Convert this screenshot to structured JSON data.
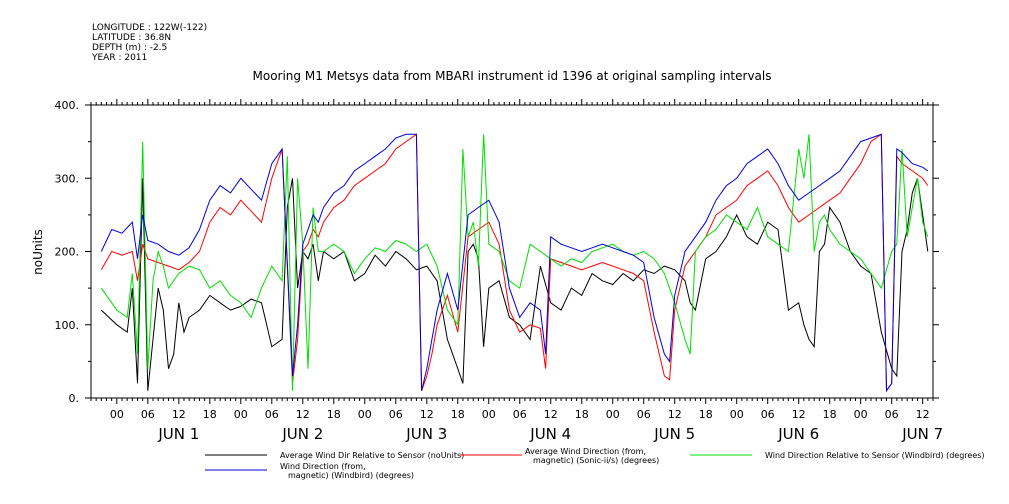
{
  "metadata": {
    "longitude": "LONGITUDE : 122W(-122)",
    "latitude": "LATITUDE : 36.8N",
    "depth": "DEPTH (m) : -2.5",
    "year": "YEAR : 2011"
  },
  "chart_data": {
    "type": "line",
    "title": "Mooring M1 Metsys data from MBARI instrument id 1396 at original sampling intervals",
    "ylabel": "noUnits",
    "xlabel": "",
    "ylim": [
      0,
      400
    ],
    "yticks": [
      0,
      100,
      200,
      300,
      400
    ],
    "ytick_labels": [
      "0.",
      "100.",
      "200.",
      "300.",
      "400."
    ],
    "xlim_hours": [
      -5,
      158
    ],
    "xtick_hours": [
      0,
      6,
      12,
      18,
      24,
      30,
      36,
      42,
      48,
      54,
      60,
      66,
      72,
      78,
      84,
      90,
      96,
      102,
      108,
      114,
      120,
      126,
      132,
      138,
      144,
      150,
      156
    ],
    "xtick_labels": [
      "00",
      "06",
      "12",
      "18",
      "00",
      "06",
      "12",
      "18",
      "00",
      "06",
      "12",
      "18",
      "00",
      "06",
      "12",
      "18",
      "00",
      "06",
      "12",
      "18",
      "00",
      "06",
      "12",
      "18",
      "00",
      "06",
      "12"
    ],
    "day_labels": [
      {
        "hour": 12,
        "text": "JUN  1"
      },
      {
        "hour": 36,
        "text": "JUN  2"
      },
      {
        "hour": 60,
        "text": "JUN  3"
      },
      {
        "hour": 84,
        "text": "JUN  4"
      },
      {
        "hour": 108,
        "text": "JUN  5"
      },
      {
        "hour": 132,
        "text": "JUN  6"
      },
      {
        "hour": 156,
        "text": "JUN  7"
      }
    ],
    "grid": false,
    "legend_position": "bottom",
    "series": [
      {
        "name": "Average Wind Dir Relative to Sensor (noUnits)",
        "color": "#000000",
        "x": [
          -3,
          0,
          2,
          3,
          4,
          5,
          6,
          7,
          8,
          9,
          10,
          11,
          12,
          13,
          14,
          16,
          18,
          20,
          22,
          24,
          26,
          28,
          30,
          32,
          33,
          34,
          35,
          36,
          37,
          38,
          39,
          40,
          42,
          44,
          46,
          48,
          50,
          52,
          54,
          56,
          58,
          60,
          62,
          64,
          66,
          67,
          68,
          69,
          70,
          71,
          72,
          74,
          76,
          78,
          80,
          82,
          84,
          86,
          88,
          90,
          92,
          94,
          96,
          98,
          100,
          102,
          104,
          106,
          108,
          110,
          111,
          112,
          114,
          116,
          118,
          120,
          122,
          124,
          126,
          128,
          130,
          132,
          133,
          134,
          135,
          136,
          137,
          138,
          140,
          142,
          144,
          146,
          148,
          150,
          151,
          152,
          153,
          154,
          155,
          156,
          157
        ],
        "y": [
          120,
          100,
          90,
          150,
          20,
          300,
          10,
          80,
          150,
          120,
          40,
          60,
          130,
          90,
          110,
          120,
          140,
          130,
          120,
          125,
          135,
          130,
          70,
          80,
          260,
          300,
          150,
          200,
          190,
          210,
          160,
          200,
          190,
          200,
          160,
          170,
          195,
          180,
          200,
          190,
          175,
          180,
          160,
          80,
          40,
          20,
          200,
          210,
          190,
          70,
          150,
          160,
          110,
          100,
          80,
          180,
          130,
          120,
          150,
          140,
          170,
          160,
          155,
          170,
          160,
          175,
          170,
          180,
          175,
          160,
          130,
          120,
          190,
          200,
          220,
          250,
          220,
          210,
          240,
          230,
          120,
          130,
          100,
          80,
          70,
          200,
          210,
          260,
          240,
          200,
          180,
          170,
          90,
          40,
          30,
          200,
          230,
          280,
          300,
          250,
          200
        ]
      },
      {
        "name": "Average Wind Direction (from, magnetic) (Sonic-ii/s) (degrees)",
        "color": "#ff0000",
        "x": [
          -3,
          -1,
          1,
          3,
          4,
          5,
          6,
          8,
          10,
          12,
          14,
          16,
          18,
          20,
          22,
          24,
          26,
          28,
          30,
          32,
          34,
          35,
          36,
          37,
          38,
          39,
          40,
          42,
          44,
          46,
          48,
          50,
          52,
          54,
          56,
          58,
          59,
          60,
          61,
          62,
          64,
          66,
          68,
          70,
          72,
          74,
          76,
          78,
          80,
          82,
          83,
          84,
          86,
          88,
          90,
          92,
          94,
          96,
          98,
          100,
          102,
          104,
          106,
          107,
          108,
          110,
          112,
          114,
          116,
          118,
          120,
          122,
          124,
          126,
          128,
          130,
          132,
          134,
          136,
          138,
          140,
          142,
          144,
          146,
          148,
          149,
          150,
          151,
          152,
          154,
          156,
          157
        ],
        "y": [
          175,
          200,
          195,
          200,
          160,
          210,
          190,
          185,
          180,
          175,
          185,
          200,
          240,
          260,
          250,
          270,
          255,
          240,
          300,
          340,
          20,
          80,
          200,
          210,
          230,
          220,
          240,
          260,
          270,
          290,
          300,
          310,
          320,
          340,
          350,
          360,
          10,
          30,
          60,
          100,
          140,
          90,
          220,
          230,
          240,
          210,
          120,
          90,
          100,
          95,
          40,
          190,
          185,
          180,
          175,
          180,
          185,
          180,
          175,
          170,
          160,
          90,
          30,
          25,
          120,
          180,
          200,
          220,
          250,
          260,
          270,
          290,
          300,
          310,
          290,
          260,
          240,
          250,
          260,
          270,
          280,
          300,
          320,
          350,
          360,
          10,
          20,
          330,
          320,
          310,
          300,
          290
        ]
      },
      {
        "name": "Wind Direction Relative to Sensor (Windbird) (degrees)",
        "color": "#00e000",
        "x": [
          -3,
          0,
          2,
          3,
          4,
          5,
          6,
          7,
          8,
          9,
          10,
          12,
          14,
          16,
          18,
          20,
          22,
          24,
          26,
          28,
          30,
          32,
          33,
          34,
          35,
          36,
          37,
          38,
          39,
          40,
          42,
          44,
          46,
          48,
          50,
          52,
          54,
          56,
          58,
          60,
          62,
          64,
          66,
          67,
          68,
          69,
          70,
          71,
          72,
          74,
          76,
          78,
          80,
          82,
          84,
          86,
          88,
          90,
          92,
          94,
          96,
          98,
          100,
          102,
          104,
          106,
          108,
          110,
          111,
          112,
          114,
          116,
          118,
          120,
          122,
          124,
          126,
          128,
          130,
          132,
          133,
          134,
          135,
          136,
          137,
          138,
          140,
          142,
          144,
          146,
          148,
          150,
          151,
          152,
          153,
          154,
          155,
          156,
          157
        ],
        "y": [
          150,
          120,
          110,
          170,
          60,
          350,
          40,
          160,
          200,
          180,
          150,
          170,
          180,
          175,
          150,
          160,
          140,
          130,
          110,
          150,
          180,
          160,
          330,
          10,
          300,
          210,
          40,
          260,
          200,
          200,
          210,
          200,
          170,
          190,
          205,
          200,
          215,
          210,
          200,
          210,
          180,
          120,
          100,
          340,
          220,
          240,
          180,
          360,
          210,
          200,
          160,
          150,
          210,
          200,
          190,
          180,
          190,
          185,
          200,
          205,
          210,
          200,
          195,
          200,
          190,
          170,
          130,
          80,
          60,
          200,
          220,
          230,
          250,
          240,
          230,
          260,
          220,
          210,
          200,
          340,
          300,
          360,
          200,
          240,
          250,
          230,
          210,
          200,
          190,
          170,
          150,
          200,
          210,
          340,
          220,
          260,
          300,
          240,
          220
        ]
      },
      {
        "name": "Wind Direction (from, magnetic) (Windbird) (degrees)",
        "color": "#0000dd",
        "x": [
          -3,
          -1,
          1,
          3,
          4,
          5,
          6,
          8,
          10,
          12,
          14,
          16,
          18,
          20,
          22,
          24,
          26,
          28,
          30,
          32,
          34,
          35,
          36,
          37,
          38,
          39,
          40,
          42,
          44,
          46,
          48,
          50,
          52,
          54,
          56,
          58,
          59,
          60,
          61,
          62,
          64,
          66,
          68,
          70,
          72,
          74,
          76,
          78,
          80,
          82,
          83,
          84,
          86,
          88,
          90,
          92,
          94,
          96,
          98,
          100,
          102,
          104,
          106,
          107,
          108,
          110,
          112,
          114,
          116,
          118,
          120,
          122,
          124,
          126,
          128,
          130,
          132,
          134,
          136,
          138,
          140,
          142,
          144,
          146,
          148,
          149,
          150,
          151,
          152,
          154,
          156,
          157
        ],
        "y": [
          200,
          230,
          225,
          240,
          190,
          250,
          215,
          210,
          200,
          195,
          205,
          230,
          270,
          290,
          280,
          300,
          285,
          270,
          320,
          340,
          30,
          100,
          210,
          230,
          250,
          240,
          260,
          280,
          290,
          310,
          320,
          330,
          340,
          355,
          360,
          360,
          10,
          40,
          80,
          120,
          170,
          120,
          250,
          260,
          270,
          240,
          150,
          110,
          130,
          120,
          60,
          220,
          210,
          205,
          200,
          205,
          210,
          205,
          200,
          195,
          185,
          110,
          60,
          50,
          140,
          200,
          220,
          240,
          270,
          290,
          300,
          320,
          330,
          340,
          320,
          290,
          270,
          280,
          290,
          300,
          310,
          330,
          350,
          355,
          360,
          10,
          20,
          340,
          335,
          320,
          315,
          310
        ]
      }
    ],
    "legend_entries": [
      {
        "lines": [
          "Average Wind Dir Relative to Sensor (noUnits)"
        ],
        "color": "#000000"
      },
      {
        "lines": [
          "Average Wind Direction (from,",
          "magnetic) (Sonic-ii/s) (degrees)"
        ],
        "color": "#ff0000"
      },
      {
        "lines": [
          "Wind Direction Relative to Sensor (Windbird) (degrees)"
        ],
        "color": "#00e000"
      },
      {
        "lines": [
          "Wind Direction (from,",
          "magnetic) (Windbird) (degrees)"
        ],
        "color": "#0000dd"
      }
    ]
  }
}
